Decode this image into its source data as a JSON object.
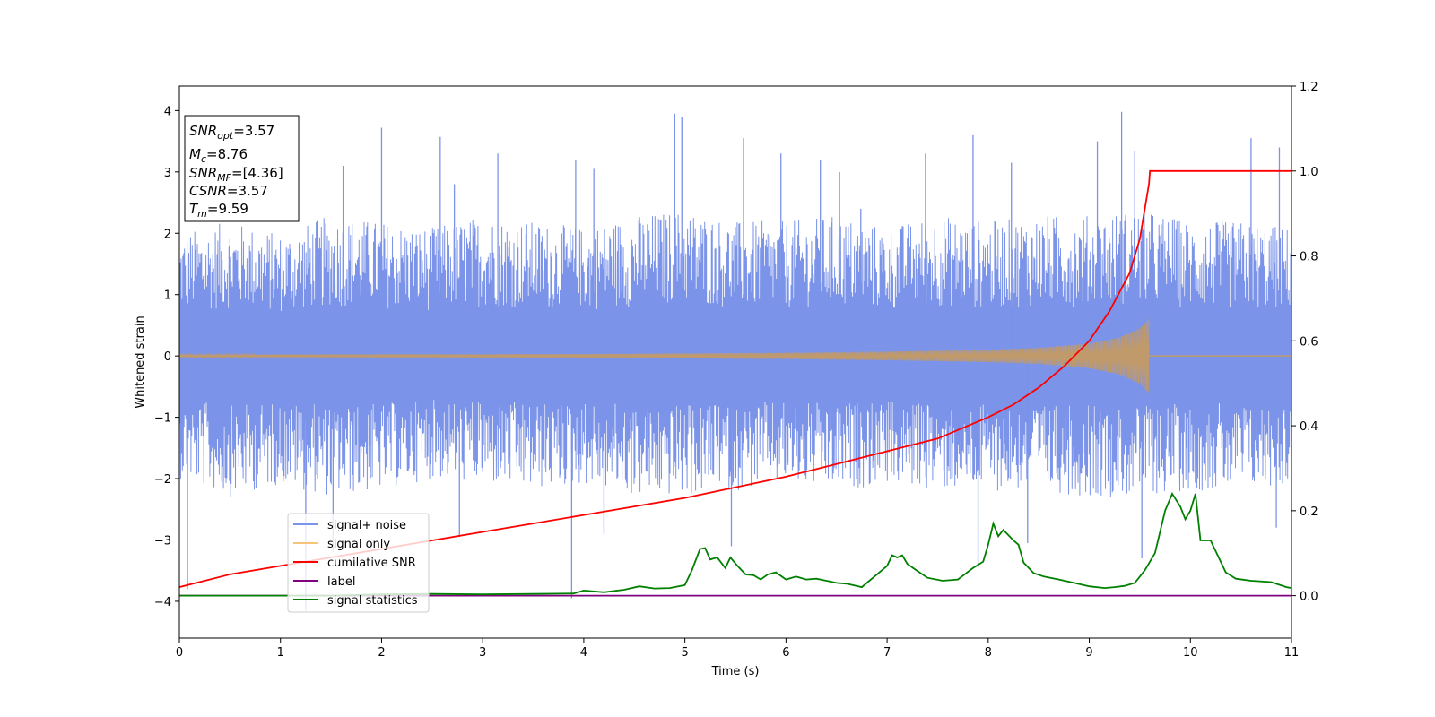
{
  "chart_data": {
    "type": "line",
    "xlabel": "Time (s)",
    "ylabel": "Whitened strain",
    "xlim": [
      0,
      11
    ],
    "ylim_left": [
      -4.6,
      4.4
    ],
    "ylim_right": [
      -0.1,
      1.2
    ],
    "x_ticks": [
      0,
      1,
      2,
      3,
      4,
      5,
      6,
      7,
      8,
      9,
      10,
      11
    ],
    "y_ticks_left": [
      -4,
      -3,
      -2,
      -1,
      0,
      1,
      2,
      3,
      4
    ],
    "y_ticks_right": [
      0.0,
      0.2,
      0.4,
      0.6,
      0.8,
      1.0,
      1.2
    ],
    "x_tick_labels": [
      "0",
      "1",
      "2",
      "3",
      "4",
      "5",
      "6",
      "7",
      "8",
      "9",
      "10",
      "11"
    ],
    "y_tick_labels_left": [
      "−4",
      "−3",
      "−2",
      "−1",
      "0",
      "1",
      "2",
      "3",
      "4"
    ],
    "y_tick_labels_right": [
      "0.0",
      "0.2",
      "0.4",
      "0.6",
      "0.8",
      "1.0",
      "1.2"
    ],
    "legend_position": "lower-left",
    "grid": false,
    "annotation": {
      "snr_opt": {
        "base": "SNR",
        "sub": "opt",
        "value": "=3.57"
      },
      "mc": {
        "base": "M",
        "sub": "c",
        "value": "=8.76"
      },
      "snr_mf": {
        "base": "SNR",
        "sub": "MF",
        "value": "=[4.36]"
      },
      "csnr": {
        "base": "CSNR",
        "value": "=3.57"
      },
      "tm": {
        "base": "T",
        "sub": "m",
        "value": "=9.59"
      }
    },
    "series": [
      {
        "name": "signal+ noise",
        "color": "#7b93e8",
        "axis": "left",
        "envelope_upper": [
          [
            0,
            2.0
          ],
          [
            0.5,
            2.2
          ],
          [
            1,
            2.0
          ],
          [
            1.5,
            2.3
          ],
          [
            2,
            2.2
          ],
          [
            2.5,
            2.1
          ],
          [
            3,
            2.3
          ],
          [
            3.5,
            2.2
          ],
          [
            4,
            2.1
          ],
          [
            4.5,
            2.3
          ],
          [
            5,
            2.4
          ],
          [
            5.5,
            2.2
          ],
          [
            6,
            2.2
          ],
          [
            6.5,
            2.3
          ],
          [
            7,
            2.1
          ],
          [
            7.5,
            2.3
          ],
          [
            8,
            2.2
          ],
          [
            8.5,
            2.3
          ],
          [
            9,
            2.3
          ],
          [
            9.5,
            2.4
          ],
          [
            10,
            2.2
          ],
          [
            10.5,
            2.2
          ],
          [
            11,
            2.1
          ]
        ],
        "envelope_lower": [
          [
            0,
            -2.0
          ],
          [
            0.5,
            -2.3
          ],
          [
            1,
            -2.1
          ],
          [
            1.5,
            -2.3
          ],
          [
            2,
            -2.2
          ],
          [
            2.5,
            -2.0
          ],
          [
            3,
            -2.1
          ],
          [
            3.5,
            -2.2
          ],
          [
            4,
            -2.1
          ],
          [
            4.5,
            -2.3
          ],
          [
            5,
            -2.3
          ],
          [
            5.5,
            -2.2
          ],
          [
            6,
            -2.1
          ],
          [
            6.5,
            -2.2
          ],
          [
            7,
            -2.1
          ],
          [
            7.5,
            -2.2
          ],
          [
            8,
            -2.2
          ],
          [
            8.5,
            -2.2
          ],
          [
            9,
            -2.3
          ],
          [
            9.5,
            -2.3
          ],
          [
            10,
            -2.2
          ],
          [
            10.5,
            -2.2
          ],
          [
            11,
            -2.1
          ]
        ],
        "peaks": [
          [
            0.08,
            -3.8
          ],
          [
            1.25,
            -4.15
          ],
          [
            1.62,
            3.1
          ],
          [
            2.0,
            3.72
          ],
          [
            2.58,
            3.57
          ],
          [
            2.72,
            2.8
          ],
          [
            3.15,
            3.3
          ],
          [
            3.88,
            -3.95
          ],
          [
            3.92,
            3.2
          ],
          [
            4.1,
            3.05
          ],
          [
            4.9,
            3.95
          ],
          [
            4.97,
            3.9
          ],
          [
            5.58,
            3.55
          ],
          [
            5.95,
            3.3
          ],
          [
            6.34,
            3.2
          ],
          [
            6.53,
            3.0
          ],
          [
            6.74,
            2.4
          ],
          [
            7.38,
            3.3
          ],
          [
            7.85,
            3.6
          ],
          [
            8.23,
            3.15
          ],
          [
            9.08,
            3.5
          ],
          [
            9.32,
            3.98
          ],
          [
            9.45,
            3.35
          ],
          [
            10.6,
            3.55
          ],
          [
            10.88,
            3.4
          ],
          [
            8.39,
            -3.05
          ],
          [
            7.9,
            -3.45
          ],
          [
            5.46,
            -3.1
          ],
          [
            1.52,
            -3.2
          ],
          [
            2.77,
            -2.95
          ],
          [
            4.2,
            -2.9
          ],
          [
            9.52,
            -3.3
          ],
          [
            10.85,
            -2.8
          ]
        ]
      },
      {
        "name": "signal only",
        "color": "#f7c57a",
        "axis": "left",
        "chirp_amplitude": [
          [
            0,
            0.02
          ],
          [
            2,
            0.025
          ],
          [
            4,
            0.03
          ],
          [
            6,
            0.05
          ],
          [
            7,
            0.07
          ],
          [
            8,
            0.1
          ],
          [
            8.5,
            0.13
          ],
          [
            9,
            0.2
          ],
          [
            9.3,
            0.3
          ],
          [
            9.5,
            0.45
          ],
          [
            9.59,
            0.6
          ]
        ],
        "merger_time": 9.59
      },
      {
        "name": "cumilative SNR",
        "color": "#ff0000",
        "axis": "right",
        "x": [
          0,
          0.5,
          1,
          1.5,
          2,
          2.5,
          3,
          3.5,
          4,
          4.5,
          5,
          5.5,
          6,
          6.5,
          7,
          7.5,
          8,
          8.25,
          8.5,
          8.75,
          9,
          9.2,
          9.4,
          9.5,
          9.59,
          9.6,
          11
        ],
        "y": [
          0.02,
          0.05,
          0.07,
          0.09,
          0.11,
          0.13,
          0.15,
          0.17,
          0.19,
          0.21,
          0.23,
          0.255,
          0.28,
          0.31,
          0.34,
          0.37,
          0.42,
          0.45,
          0.49,
          0.54,
          0.6,
          0.67,
          0.76,
          0.84,
          0.97,
          1.0,
          1.0
        ]
      },
      {
        "name": "label",
        "color": "#800080",
        "axis": "right",
        "x": [
          0,
          11
        ],
        "y": [
          0.0,
          0.0
        ]
      },
      {
        "name": "signal statistics",
        "color": "#008000",
        "axis": "right",
        "x": [
          0,
          0.5,
          1,
          1.5,
          2,
          2.5,
          3,
          3.5,
          3.9,
          4.0,
          4.2,
          4.4,
          4.55,
          4.7,
          4.85,
          5.0,
          5.07,
          5.15,
          5.2,
          5.25,
          5.32,
          5.4,
          5.45,
          5.52,
          5.6,
          5.68,
          5.75,
          5.82,
          5.9,
          6.0,
          6.1,
          6.2,
          6.3,
          6.4,
          6.5,
          6.6,
          6.75,
          6.9,
          7.0,
          7.05,
          7.1,
          7.15,
          7.2,
          7.3,
          7.4,
          7.55,
          7.7,
          7.85,
          7.95,
          8.0,
          8.05,
          8.1,
          8.15,
          8.25,
          8.3,
          8.35,
          8.45,
          8.55,
          8.7,
          8.85,
          9.0,
          9.15,
          9.25,
          9.35,
          9.45,
          9.55,
          9.65,
          9.75,
          9.82,
          9.9,
          9.95,
          10.0,
          10.05,
          10.1,
          10.2,
          10.35,
          10.45,
          10.6,
          10.8,
          10.95,
          11
        ],
        "y": [
          0.0,
          0.0,
          0.0,
          0.0,
          0.003,
          0.004,
          0.003,
          0.004,
          0.005,
          0.012,
          0.008,
          0.014,
          0.022,
          0.017,
          0.018,
          0.025,
          0.06,
          0.11,
          0.112,
          0.085,
          0.09,
          0.065,
          0.09,
          0.07,
          0.05,
          0.048,
          0.038,
          0.05,
          0.055,
          0.038,
          0.045,
          0.038,
          0.04,
          0.035,
          0.03,
          0.028,
          0.02,
          0.05,
          0.07,
          0.095,
          0.09,
          0.095,
          0.075,
          0.058,
          0.042,
          0.035,
          0.038,
          0.065,
          0.08,
          0.12,
          0.17,
          0.14,
          0.155,
          0.13,
          0.12,
          0.078,
          0.053,
          0.045,
          0.038,
          0.03,
          0.022,
          0.018,
          0.02,
          0.023,
          0.03,
          0.06,
          0.1,
          0.2,
          0.24,
          0.21,
          0.18,
          0.2,
          0.24,
          0.13,
          0.13,
          0.055,
          0.04,
          0.035,
          0.032,
          0.02,
          0.018
        ]
      }
    ]
  }
}
